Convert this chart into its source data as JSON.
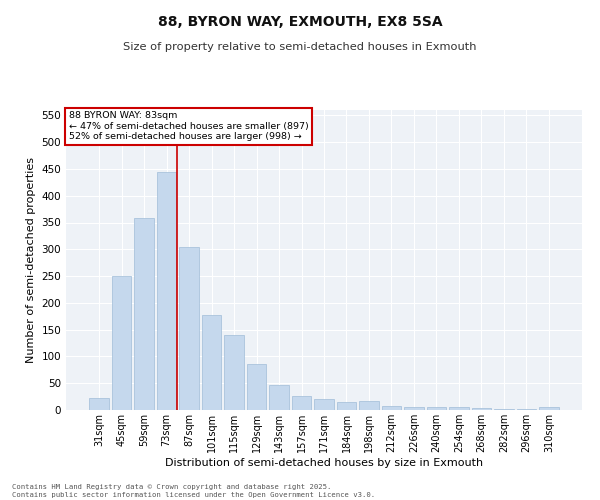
{
  "title": "88, BYRON WAY, EXMOUTH, EX8 5SA",
  "subtitle": "Size of property relative to semi-detached houses in Exmouth",
  "xlabel": "Distribution of semi-detached houses by size in Exmouth",
  "ylabel": "Number of semi-detached properties",
  "categories": [
    "31sqm",
    "45sqm",
    "59sqm",
    "73sqm",
    "87sqm",
    "101sqm",
    "115sqm",
    "129sqm",
    "143sqm",
    "157sqm",
    "171sqm",
    "184sqm",
    "198sqm",
    "212sqm",
    "226sqm",
    "240sqm",
    "254sqm",
    "268sqm",
    "282sqm",
    "296sqm",
    "310sqm"
  ],
  "values": [
    22,
    250,
    358,
    445,
    305,
    178,
    140,
    85,
    47,
    27,
    20,
    15,
    17,
    8,
    6,
    5,
    5,
    3,
    1,
    1,
    5
  ],
  "bar_color": "#c5d8ed",
  "bar_edge_color": "#a0bcd8",
  "vline_color": "#cc0000",
  "vline_x": 3.45,
  "annotation_title": "88 BYRON WAY: 83sqm",
  "annotation_line1": "← 47% of semi-detached houses are smaller (897)",
  "annotation_line2": "52% of semi-detached houses are larger (998) →",
  "annotation_box_color": "#cc0000",
  "ylim": [
    0,
    560
  ],
  "yticks": [
    0,
    50,
    100,
    150,
    200,
    250,
    300,
    350,
    400,
    450,
    500,
    550
  ],
  "background_color": "#eef2f7",
  "footer_line1": "Contains HM Land Registry data © Crown copyright and database right 2025.",
  "footer_line2": "Contains public sector information licensed under the Open Government Licence v3.0."
}
